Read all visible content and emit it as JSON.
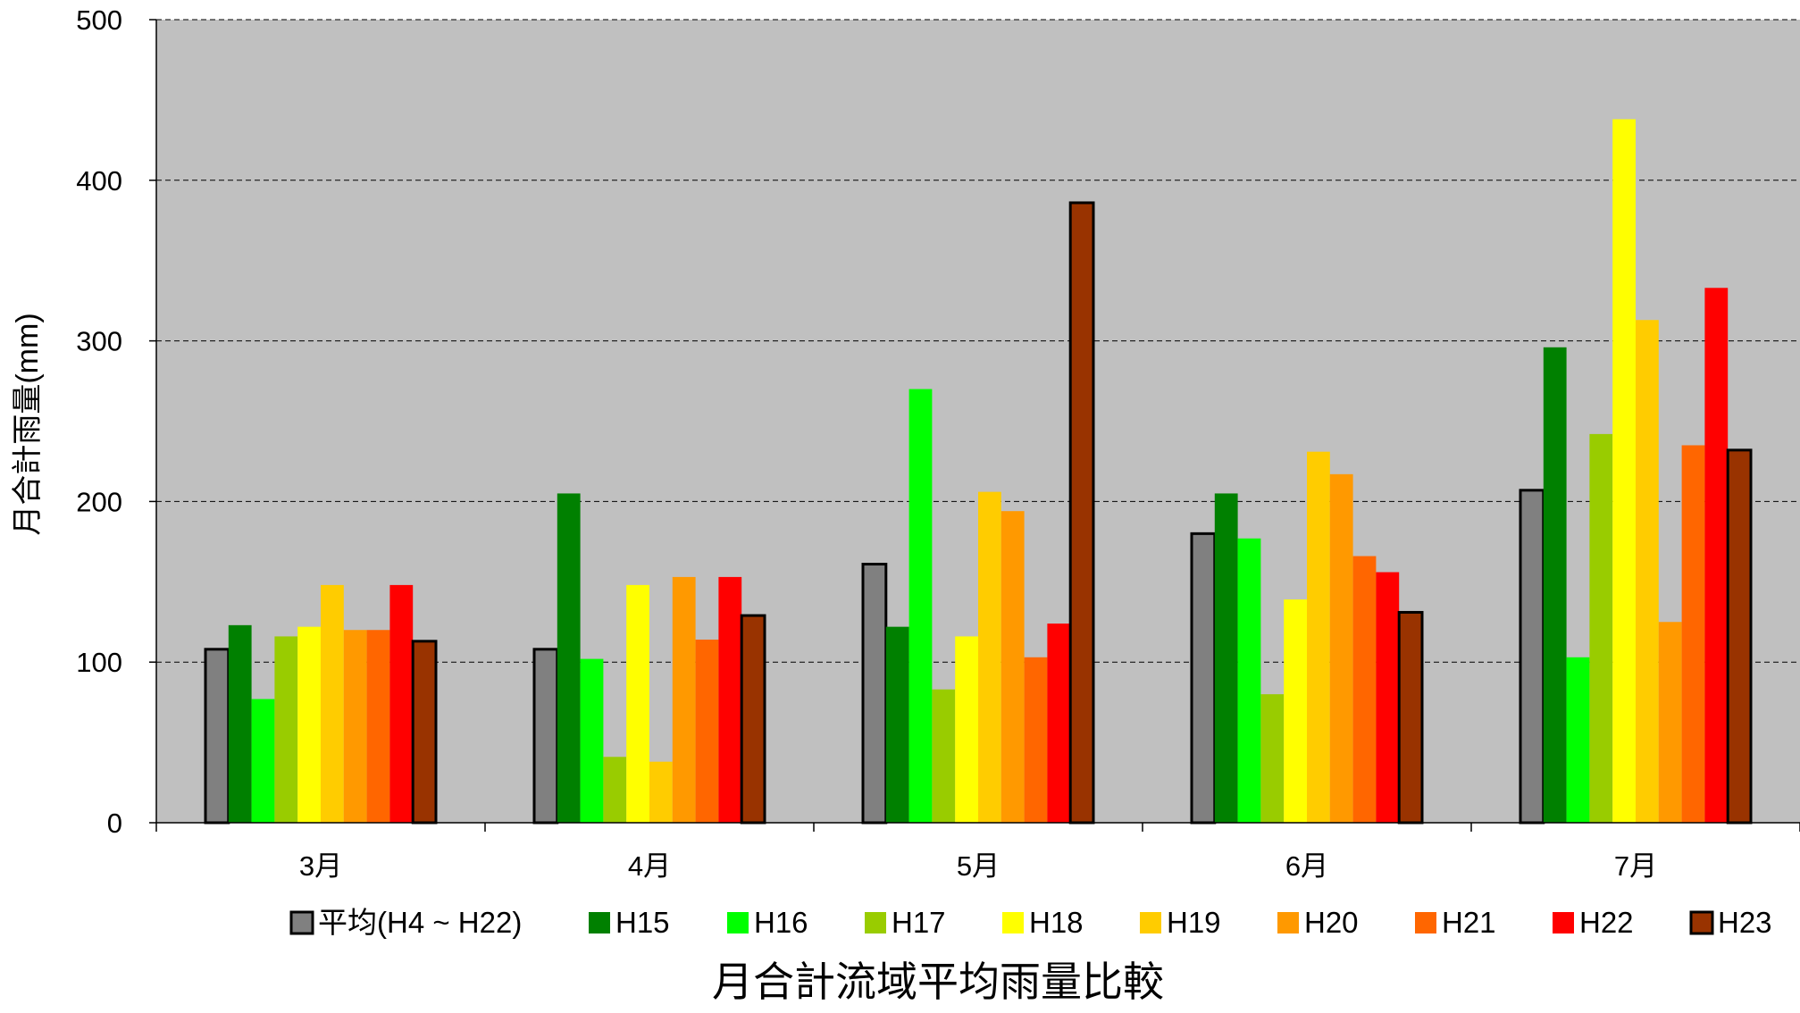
{
  "chart_data": {
    "type": "bar",
    "title": "月合計流域平均雨量比較",
    "ylabel": "月合計雨量(mm)",
    "xlabel": "",
    "ylim": [
      0,
      500
    ],
    "yticks": [
      0,
      100,
      200,
      300,
      400,
      500
    ],
    "grid": true,
    "legend_position": "bottom",
    "categories": [
      "3月",
      "4月",
      "5月",
      "6月",
      "7月"
    ],
    "series": [
      {
        "name": "平均(H4 ~ H22)",
        "color": "#808080",
        "outlined": true,
        "values": [
          108,
          108,
          161,
          180,
          207
        ]
      },
      {
        "name": "H15",
        "color": "#008000",
        "outlined": false,
        "values": [
          123,
          205,
          122,
          205,
          296
        ]
      },
      {
        "name": "H16",
        "color": "#00ff00",
        "outlined": false,
        "values": [
          77,
          102,
          270,
          177,
          103
        ]
      },
      {
        "name": "H17",
        "color": "#99cc00",
        "outlined": false,
        "values": [
          116,
          41,
          83,
          80,
          242
        ]
      },
      {
        "name": "H18",
        "color": "#ffff00",
        "outlined": false,
        "values": [
          122,
          148,
          116,
          139,
          438
        ]
      },
      {
        "name": "H19",
        "color": "#ffcc00",
        "outlined": false,
        "values": [
          148,
          38,
          206,
          231,
          313
        ]
      },
      {
        "name": "H20",
        "color": "#ff9900",
        "outlined": false,
        "values": [
          120,
          153,
          194,
          217,
          125
        ]
      },
      {
        "name": "H21",
        "color": "#ff6600",
        "outlined": false,
        "values": [
          120,
          114,
          103,
          166,
          235
        ]
      },
      {
        "name": "H22",
        "color": "#ff0000",
        "outlined": false,
        "values": [
          148,
          153,
          124,
          156,
          333
        ]
      },
      {
        "name": "H23",
        "color": "#993300",
        "outlined": true,
        "values": [
          113,
          129,
          386,
          131,
          232
        ]
      }
    ],
    "plot_background": "#c0c0c0"
  }
}
